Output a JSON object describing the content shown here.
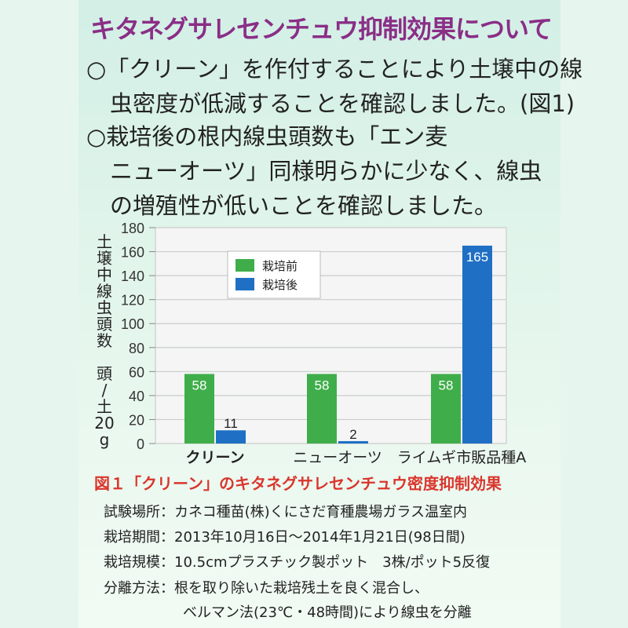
{
  "title": "キタネグサレセンチュウ抑制効果について",
  "para1": {
    "line1": "○「クリーン」を作付することにより土壌中の線",
    "line2": "虫密度が低減することを確認しました。(図1)"
  },
  "para2": {
    "line1": "○栽培後の根内線虫頭数も「エン麦",
    "line2": "ニューオーツ」同様明らかに少なく、線虫",
    "line3": "の増殖性が低いことを確認しました。"
  },
  "figure_caption": "図１「クリーン」のキタネグサレセンチュウ密度抑制効果",
  "experiment": {
    "place": "試験場所：カネコ種苗(株)くにさだ育種農場ガラス温室内",
    "period": "栽培期間：2013年10月16日〜2014年1月21日(98日間)",
    "scale": "栽培規模：10.5cmプラスチック製ポット　3株/ポット5反復",
    "method": "分離方法：根を取り除いた栽培残土を良く混合し、",
    "method2": "ベルマン法(23℃・48時間)により線虫を分離"
  },
  "chart_data": {
    "type": "bar",
    "ylabel": "土壌中線虫頭数　頭/土20g",
    "ylabel_lines": [
      "土",
      "壌",
      "中",
      "線",
      "虫",
      "頭",
      "数",
      "",
      "頭",
      "/",
      "土",
      "20",
      "g"
    ],
    "ylim": [
      0,
      180
    ],
    "yticks": [
      "0",
      "20",
      "40",
      "60",
      "80",
      "100",
      "120",
      "140",
      "160",
      "180"
    ],
    "grid": true,
    "legend_position": "top-left",
    "categories": [
      "クリーン",
      "ニューオーツ",
      "ライムギ市販品種A"
    ],
    "series": [
      {
        "name": "栽培前",
        "values": [
          58,
          58,
          58
        ],
        "color": "#3fae4a"
      },
      {
        "name": "栽培後",
        "values": [
          11,
          2,
          165
        ],
        "color": "#1f6fc4"
      }
    ]
  }
}
